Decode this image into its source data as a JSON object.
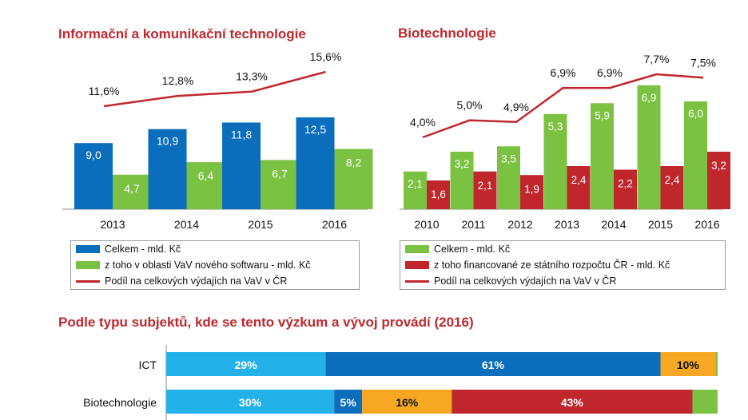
{
  "colors": {
    "blue_dark": "#0a6ebd",
    "blue_light": "#23b1ea",
    "green": "#7cc242",
    "red": "#c0272d",
    "orange": "#f7a823"
  },
  "titles": {
    "ict": "Informační a komunikační technologie",
    "bio": "Biotechnologie",
    "subjects": "Podle typu subjektů, kde se tento výzkum a vývoj provádí (2016)"
  },
  "legends": {
    "ict": [
      "Celkem - mld. Kč",
      "z toho v oblasti VaV nového softwaru - mld. Kč",
      "Podíl na celkových výdajích na VaV v ČR"
    ],
    "bio": [
      "Celkem - mld. Kč",
      "z toho financované ze státního rozpočtu ČR - mld. Kč",
      "Podíl na celkových výdajích na VaV v ČR"
    ]
  },
  "chart_data": [
    {
      "type": "bar",
      "title": "Informační a komunikační technologie",
      "categories": [
        "2013",
        "2014",
        "2015",
        "2016"
      ],
      "series": [
        {
          "name": "Celkem - mld. Kč",
          "values": [
            9.0,
            10.9,
            11.8,
            12.5
          ],
          "labels": [
            "9,0",
            "10,9",
            "11,8",
            "12,5"
          ]
        },
        {
          "name": "z toho v oblasti VaV nového softwaru - mld. Kč",
          "values": [
            4.7,
            6.4,
            6.7,
            8.2
          ],
          "labels": [
            "4,7",
            "6,4",
            "6,7",
            "8,2"
          ]
        }
      ],
      "line": {
        "name": "Podíl na celkových výdajích na VaV v ČR",
        "values": [
          11.6,
          12.8,
          13.3,
          15.6
        ],
        "labels": [
          "11,6%",
          "12,8%",
          "13,3%",
          "15,6%"
        ]
      }
    },
    {
      "type": "bar",
      "title": "Biotechnologie",
      "categories": [
        "2010",
        "2011",
        "2012",
        "2013",
        "2014",
        "2015",
        "2016"
      ],
      "series": [
        {
          "name": "Celkem - mld. Kč",
          "values": [
            2.1,
            3.2,
            3.5,
            5.3,
            5.9,
            6.9,
            6.0
          ],
          "labels": [
            "2,1",
            "3,2",
            "3,5",
            "5,3",
            "5,9",
            "6,9",
            "6,0"
          ]
        },
        {
          "name": "z toho financované ze státního rozpočtu ČR - mld. Kč",
          "values": [
            1.6,
            2.1,
            1.9,
            2.4,
            2.2,
            2.4,
            3.2
          ],
          "labels": [
            "1,6",
            "2,1",
            "1,9",
            "2,4",
            "2,2",
            "2,4",
            "3,2"
          ]
        }
      ],
      "line": {
        "name": "Podíl na celkových výdajích na VaV v ČR",
        "values": [
          4.0,
          5.0,
          4.9,
          6.9,
          6.9,
          7.7,
          7.5
        ],
        "labels": [
          "4,0%",
          "5,0%",
          "4,9%",
          "6,9%",
          "6,9%",
          "7,7%",
          "7,5%"
        ]
      }
    },
    {
      "type": "bar",
      "orientation": "horizontal-stacked-percent",
      "title": "Podle typu subjektů, kde se tento výzkum a vývoj provádí (2016)",
      "categories": [
        "ICT",
        "Biotechnologie"
      ],
      "segment_colors": [
        "#23b1ea",
        "#0a6ebd",
        "#f7a823",
        "#c0272d",
        "#7cc242"
      ],
      "rows": [
        {
          "values": [
            29,
            61,
            10,
            0,
            0.4
          ],
          "labels": [
            "29%",
            "61%",
            "10%",
            "",
            ""
          ]
        },
        {
          "values": [
            30,
            5,
            16,
            43,
            4.5
          ],
          "labels": [
            "30%",
            "5%",
            "16%",
            "43%",
            ""
          ]
        }
      ]
    }
  ]
}
